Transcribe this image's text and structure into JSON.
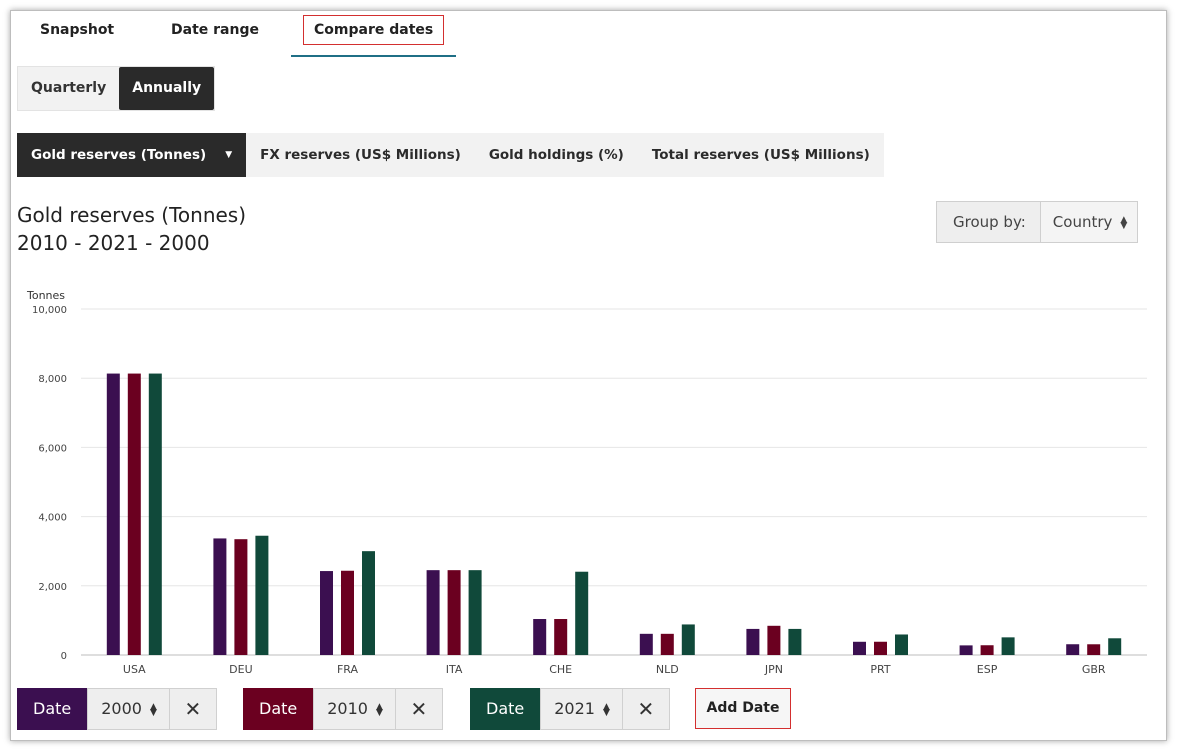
{
  "tabs": [
    {
      "label": "Snapshot"
    },
    {
      "label": "Date range"
    },
    {
      "label": "Compare dates"
    }
  ],
  "period": {
    "quarterly": "Quarterly",
    "annually": "Annually"
  },
  "metrics": [
    {
      "label": "Gold reserves (Tonnes)"
    },
    {
      "label": "FX reserves (US$ Millions)"
    },
    {
      "label": "Gold holdings (%)"
    },
    {
      "label": "Total reserves (US$ Millions)"
    }
  ],
  "title_line1": "Gold reserves (Tonnes)",
  "title_line2": "2010 - 2021 - 2000",
  "group_by": {
    "label": "Group by:",
    "value": "Country"
  },
  "dates": [
    {
      "tag": "Date",
      "value": "2000",
      "color": "#3b0f50"
    },
    {
      "tag": "Date",
      "value": "2010",
      "color": "#6b0020"
    },
    {
      "tag": "Date",
      "value": "2021",
      "color": "#10493a"
    }
  ],
  "add_date_label": "Add Date",
  "chart_data": {
    "type": "bar",
    "ylabel": "Tonnes",
    "ylim": [
      0,
      10000
    ],
    "yticks": [
      "0",
      "2,000",
      "4,000",
      "6,000",
      "8,000",
      "10,000"
    ],
    "grid": true,
    "categories": [
      "USA",
      "DEU",
      "FRA",
      "ITA",
      "CHE",
      "NLD",
      "JPN",
      "PRT",
      "ESP",
      "GBR"
    ],
    "series": [
      {
        "name": "2000",
        "color": "#3b0f50",
        "values": [
          8134,
          3369,
          2426,
          2452,
          1040,
          612,
          754,
          382,
          278,
          311
        ]
      },
      {
        "name": "2010",
        "color": "#6b0020",
        "values": [
          8134,
          3347,
          2435,
          2452,
          1040,
          612,
          844,
          383,
          282,
          310
        ]
      },
      {
        "name": "2021",
        "color": "#10493a",
        "values": [
          8134,
          3447,
          3001,
          2452,
          2407,
          883,
          754,
          593,
          510,
          483
        ]
      }
    ]
  }
}
